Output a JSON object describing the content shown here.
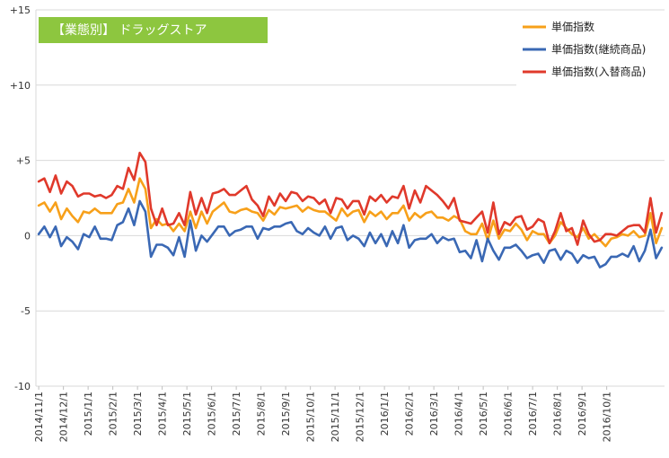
{
  "chart_data": {
    "type": "line",
    "title": "【業態別】 ドラッグストア",
    "title_box_color": "#8dc63f",
    "xlabel": "",
    "ylabel": "",
    "ylim": [
      -10,
      15
    ],
    "y_ticks": [
      15,
      10,
      5,
      0,
      -5,
      -10
    ],
    "y_tick_labels": [
      "+15",
      "+10",
      "+5",
      "0",
      "-5",
      "-10"
    ],
    "grid": "horizontal",
    "legend_position": "top-right",
    "x_tick_labels": [
      "2014/11/1",
      "2014/12/1",
      "2015/1/1",
      "2015/2/1",
      "2015/3/1",
      "2015/4/1",
      "2015/5/1",
      "2015/6/1",
      "2015/7/1",
      "2015/8/1",
      "2015/9/1",
      "2015/10/1",
      "2015/11/1",
      "2015/12/1",
      "2016/1/1",
      "2016/2/1",
      "2016/3/1",
      "2016/4/1",
      "2016/5/1",
      "2016/6/1",
      "2016/7/1",
      "2016/8/1",
      "2016/9/1",
      "2016/10/1"
    ],
    "weeks_per_month": 4.4,
    "series": [
      {
        "name": "単価指数",
        "color": "#f7a01a",
        "values": [
          2.0,
          2.2,
          1.6,
          2.2,
          1.1,
          1.8,
          1.3,
          0.9,
          1.6,
          1.5,
          1.8,
          1.5,
          1.5,
          1.5,
          2.1,
          2.2,
          3.1,
          2.2,
          3.8,
          3.1,
          0.5,
          1.1,
          0.7,
          0.8,
          0.3,
          0.8,
          0.3,
          1.6,
          0.5,
          1.6,
          0.8,
          1.6,
          1.9,
          2.2,
          1.6,
          1.5,
          1.7,
          1.8,
          1.6,
          1.5,
          1.0,
          1.7,
          1.4,
          1.9,
          1.8,
          1.9,
          2.0,
          1.6,
          1.9,
          1.7,
          1.6,
          1.6,
          1.3,
          1.0,
          1.8,
          1.3,
          1.6,
          1.7,
          0.9,
          1.6,
          1.3,
          1.6,
          1.1,
          1.5,
          1.5,
          2.0,
          1.0,
          1.5,
          1.2,
          1.5,
          1.6,
          1.2,
          1.2,
          1.0,
          1.3,
          1.1,
          0.3,
          0.1,
          0.1,
          0.8,
          -0.3,
          1.0,
          -0.2,
          0.4,
          0.3,
          0.8,
          0.4,
          -0.3,
          0.3,
          0.1,
          0.1,
          -0.5,
          0.0,
          0.9,
          0.5,
          0.1,
          -0.1,
          0.5,
          -0.2,
          0.1,
          -0.3,
          -0.7,
          -0.2,
          -0.1,
          0.1,
          0.0,
          0.3,
          -0.1,
          0.0,
          1.5,
          -0.5,
          0.5
        ]
      },
      {
        "name": "単価指数(継続商品)",
        "color": "#3a68b4",
        "values": [
          0.1,
          0.6,
          -0.1,
          0.6,
          -0.7,
          -0.1,
          -0.4,
          -0.9,
          0.1,
          -0.1,
          0.6,
          -0.2,
          -0.2,
          -0.3,
          0.7,
          0.9,
          1.8,
          0.7,
          2.3,
          1.6,
          -1.4,
          -0.6,
          -0.6,
          -0.8,
          -1.3,
          -0.1,
          -1.4,
          1.0,
          -1.0,
          0.0,
          -0.4,
          0.1,
          0.6,
          0.6,
          0.0,
          0.3,
          0.4,
          0.6,
          0.6,
          -0.2,
          0.5,
          0.4,
          0.6,
          0.6,
          0.8,
          0.9,
          0.3,
          0.1,
          0.5,
          0.2,
          0.0,
          0.6,
          -0.2,
          0.5,
          0.6,
          -0.3,
          0.0,
          -0.2,
          -0.7,
          0.2,
          -0.5,
          0.1,
          -0.7,
          0.3,
          -0.5,
          0.7,
          -0.8,
          -0.3,
          -0.2,
          -0.2,
          0.1,
          -0.5,
          -0.1,
          -0.3,
          -0.2,
          -1.1,
          -1.0,
          -1.5,
          -0.3,
          -1.7,
          -0.2,
          -1.0,
          -1.6,
          -0.8,
          -0.8,
          -0.6,
          -1.0,
          -1.5,
          -1.3,
          -1.2,
          -1.8,
          -1.0,
          -0.9,
          -1.6,
          -1.0,
          -1.2,
          -1.8,
          -1.3,
          -1.5,
          -1.4,
          -2.1,
          -1.9,
          -1.4,
          -1.4,
          -1.2,
          -1.4,
          -0.7,
          -1.7,
          -1.0,
          0.4,
          -1.5,
          -0.8
        ]
      },
      {
        "name": "単価指数(入替商品)",
        "color": "#e0392b",
        "values": [
          3.6,
          3.8,
          2.9,
          4.0,
          2.8,
          3.6,
          3.3,
          2.6,
          2.8,
          2.8,
          2.6,
          2.7,
          2.5,
          2.7,
          3.3,
          3.1,
          4.5,
          3.7,
          5.5,
          4.9,
          1.8,
          0.7,
          1.8,
          0.7,
          0.8,
          1.5,
          0.7,
          2.9,
          1.4,
          2.5,
          1.5,
          2.8,
          2.9,
          3.1,
          2.7,
          2.7,
          3.0,
          3.3,
          2.4,
          2.0,
          1.3,
          2.6,
          2.0,
          2.8,
          2.3,
          2.9,
          2.8,
          2.3,
          2.6,
          2.5,
          2.1,
          2.4,
          1.5,
          2.5,
          2.4,
          1.8,
          2.3,
          2.3,
          1.4,
          2.6,
          2.3,
          2.7,
          2.2,
          2.6,
          2.5,
          3.3,
          1.8,
          3.0,
          2.2,
          3.3,
          3.0,
          2.7,
          2.3,
          1.8,
          2.5,
          1.0,
          0.9,
          0.8,
          1.2,
          1.6,
          0.2,
          2.2,
          0.1,
          0.9,
          0.7,
          1.2,
          1.3,
          0.4,
          0.6,
          1.1,
          0.9,
          -0.5,
          0.3,
          1.5,
          0.3,
          0.5,
          -0.6,
          1.0,
          0.1,
          -0.4,
          -0.3,
          0.1,
          0.1,
          0.0,
          0.3,
          0.6,
          0.7,
          0.7,
          0.2,
          2.5,
          0.2,
          1.5
        ]
      }
    ]
  }
}
